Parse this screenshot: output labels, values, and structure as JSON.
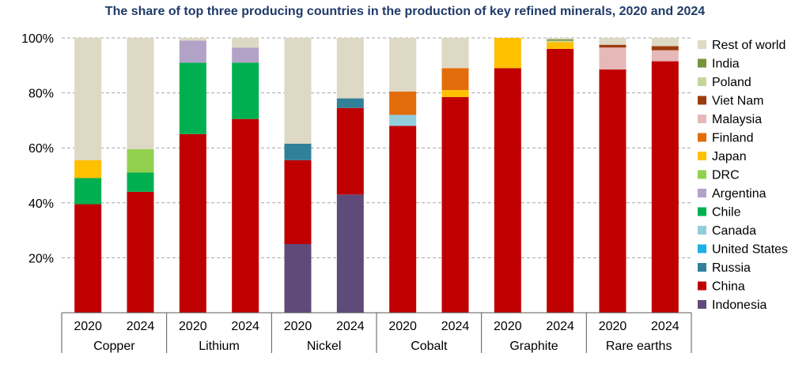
{
  "chart_data": {
    "type": "bar",
    "stacked": true,
    "title": "The share of top three producing countries in the production of key refined minerals, 2020 and 2024",
    "ylim": [
      0,
      100
    ],
    "y_ticks": [
      "20%",
      "40%",
      "60%",
      "80%",
      "100%"
    ],
    "y_tick_values": [
      20,
      40,
      60,
      80,
      100
    ],
    "grid": "horizontal dashed",
    "legend_position": "right",
    "groups": [
      {
        "name": "Copper",
        "years": [
          "2020",
          "2024"
        ]
      },
      {
        "name": "Lithium",
        "years": [
          "2020",
          "2024"
        ]
      },
      {
        "name": "Nickel",
        "years": [
          "2020",
          "2024"
        ]
      },
      {
        "name": "Cobalt",
        "years": [
          "2020",
          "2024"
        ]
      },
      {
        "name": "Graphite",
        "years": [
          "2020",
          "2024"
        ]
      },
      {
        "name": "Rare earths",
        "years": [
          "2020",
          "2024"
        ]
      }
    ],
    "series": [
      {
        "name": "Indonesia",
        "color": "#5f4b7a",
        "values": [
          0,
          0,
          0,
          0,
          25,
          43,
          0,
          0,
          0,
          0,
          0,
          0
        ]
      },
      {
        "name": "China",
        "color": "#c00000",
        "values": [
          39.5,
          44,
          65,
          70.5,
          30.5,
          31.5,
          68,
          78.5,
          89,
          96,
          88.5,
          91.5
        ]
      },
      {
        "name": "Russia",
        "color": "#31809a",
        "values": [
          0,
          0,
          0,
          0,
          6,
          3.5,
          0,
          0,
          0,
          0,
          0,
          0
        ]
      },
      {
        "name": "United States",
        "color": "#1eaee6",
        "values": [
          0,
          0,
          0,
          0,
          0,
          0,
          0,
          0,
          0,
          0,
          0,
          0
        ]
      },
      {
        "name": "Canada",
        "color": "#92cddc",
        "values": [
          0,
          0,
          0,
          0,
          0,
          0,
          4,
          0,
          0,
          0,
          0,
          0
        ]
      },
      {
        "name": "Chile",
        "color": "#00b050",
        "values": [
          9.5,
          7,
          26,
          20.5,
          0,
          0,
          0,
          0,
          0,
          0,
          0,
          0
        ]
      },
      {
        "name": "Argentina",
        "color": "#b3a2c7",
        "values": [
          0,
          0,
          8,
          5.5,
          0,
          0,
          0,
          0,
          0,
          0,
          0,
          0
        ]
      },
      {
        "name": "DRC",
        "color": "#92d050",
        "values": [
          0,
          8.5,
          0,
          0,
          0,
          0,
          0,
          0,
          0,
          0,
          0,
          0
        ]
      },
      {
        "name": "Japan",
        "color": "#ffc000",
        "values": [
          6.5,
          0,
          0,
          0,
          0,
          0,
          0,
          2.5,
          11,
          2.5,
          0,
          0
        ]
      },
      {
        "name": "Finland",
        "color": "#e36c0a",
        "values": [
          0,
          0,
          0,
          0,
          0,
          0,
          8.5,
          8,
          0,
          0,
          0,
          0
        ]
      },
      {
        "name": "Malaysia",
        "color": "#e6b8b7",
        "values": [
          0,
          0,
          0,
          0,
          0,
          0,
          0,
          0,
          0,
          0,
          8,
          4
        ]
      },
      {
        "name": "Viet Nam",
        "color": "#9c3b0f",
        "values": [
          0,
          0,
          0,
          0,
          0,
          0,
          0,
          0,
          0,
          0,
          1,
          1.5
        ]
      },
      {
        "name": "Poland",
        "color": "#c4d79b",
        "values": [
          0,
          0,
          0,
          0,
          0,
          0,
          0,
          0,
          0,
          0.5,
          0,
          0
        ]
      },
      {
        "name": "India",
        "color": "#76933c",
        "values": [
          0,
          0,
          0,
          0,
          0,
          0,
          0,
          0,
          0,
          0.5,
          0,
          0
        ]
      },
      {
        "name": "Rest of world",
        "color": "#ddd9c4",
        "values": [
          44.5,
          40.5,
          1,
          3.5,
          38.5,
          22,
          19.5,
          11,
          0,
          0.5,
          2.5,
          3
        ]
      }
    ],
    "legend_order": [
      "Rest of world",
      "India",
      "Poland",
      "Viet Nam",
      "Malaysia",
      "Finland",
      "Japan",
      "DRC",
      "Argentina",
      "Chile",
      "Canada",
      "United States",
      "Russia",
      "China",
      "Indonesia"
    ]
  }
}
